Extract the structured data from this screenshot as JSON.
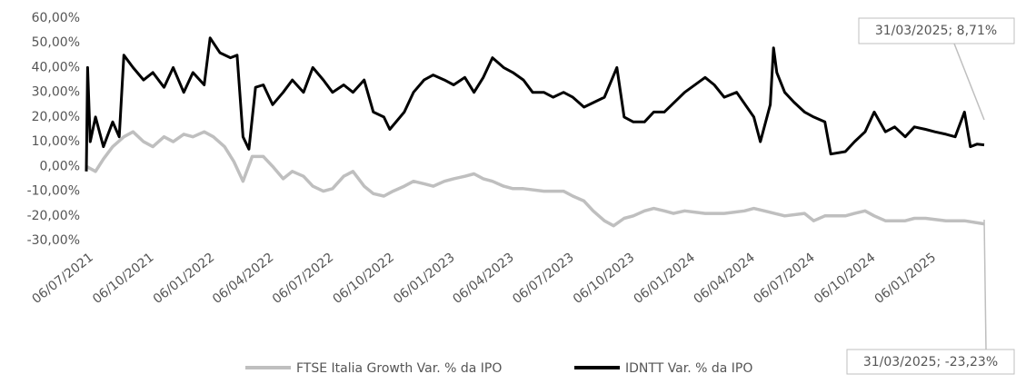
{
  "chart_data": {
    "type": "line",
    "xlim": [
      "06/07/2021",
      "31/03/2025"
    ],
    "xticks": [
      "06/07/2021",
      "06/10/2021",
      "06/01/2022",
      "06/04/2022",
      "06/07/2022",
      "06/10/2022",
      "06/01/2023",
      "06/04/2023",
      "06/07/2023",
      "06/10/2023",
      "06/01/2024",
      "06/04/2024",
      "06/07/2024",
      "06/10/2024",
      "06/01/2025"
    ],
    "ylim": [
      -30,
      60
    ],
    "yticks": [
      {
        "value": 60,
        "label": "60,00%"
      },
      {
        "value": 50,
        "label": "50,00%"
      },
      {
        "value": 40,
        "label": "40,00%"
      },
      {
        "value": 30,
        "label": "30,00%"
      },
      {
        "value": 20,
        "label": "20,00%"
      },
      {
        "value": 10,
        "label": "10,00%"
      },
      {
        "value": 0,
        "label": "0,00%"
      },
      {
        "value": -10,
        "label": "-10,00%"
      },
      {
        "value": -20,
        "label": "-20,00%"
      },
      {
        "value": -30,
        "label": "-30,00%"
      }
    ],
    "grid": false,
    "series": [
      {
        "name": "FTSE Italia Growth Var. % da IPO",
        "color": "#bfbfbf",
        "x": [
          "06/07/2021",
          "20/07/2021",
          "01/08/2021",
          "15/08/2021",
          "01/09/2021",
          "15/09/2021",
          "01/10/2021",
          "15/10/2021",
          "01/11/2021",
          "15/11/2021",
          "01/12/2021",
          "15/12/2021",
          "01/01/2022",
          "15/01/2022",
          "01/02/2022",
          "15/02/2022",
          "01/03/2022",
          "15/03/2022",
          "01/04/2022",
          "15/04/2022",
          "01/05/2022",
          "15/05/2022",
          "01/06/2022",
          "15/06/2022",
          "01/07/2022",
          "15/07/2022",
          "01/08/2022",
          "15/08/2022",
          "01/09/2022",
          "15/09/2022",
          "01/10/2022",
          "15/10/2022",
          "01/11/2022",
          "15/11/2022",
          "01/12/2022",
          "15/12/2022",
          "01/01/2023",
          "15/01/2023",
          "01/02/2023",
          "15/02/2023",
          "01/03/2023",
          "15/03/2023",
          "01/04/2023",
          "15/04/2023",
          "01/05/2023",
          "01/06/2023",
          "01/07/2023",
          "15/07/2023",
          "01/08/2023",
          "15/08/2023",
          "01/09/2023",
          "15/09/2023",
          "01/10/2023",
          "15/10/2023",
          "01/11/2023",
          "15/11/2023",
          "01/12/2023",
          "15/12/2023",
          "01/01/2024",
          "01/02/2024",
          "01/03/2024",
          "01/04/2024",
          "15/04/2024",
          "01/05/2024",
          "01/06/2024",
          "01/07/2024",
          "15/07/2024",
          "01/08/2024",
          "01/09/2024",
          "15/09/2024",
          "01/10/2024",
          "15/10/2024",
          "01/11/2024",
          "01/12/2024",
          "15/12/2024",
          "01/01/2025",
          "01/02/2025",
          "01/03/2025",
          "31/03/2025"
        ],
        "values": [
          0,
          -2,
          3,
          8,
          12,
          14,
          10,
          8,
          12,
          10,
          13,
          12,
          14,
          12,
          8,
          2,
          -6,
          4,
          4,
          0,
          -5,
          -2,
          -4,
          -8,
          -10,
          -9,
          -4,
          -2,
          -8,
          -11,
          -12,
          -10,
          -8,
          -6,
          -7,
          -8,
          -6,
          -5,
          -4,
          -3,
          -5,
          -6,
          -8,
          -9,
          -9,
          -10,
          -10,
          -12,
          -14,
          -18,
          -22,
          -24,
          -21,
          -20,
          -18,
          -17,
          -18,
          -19,
          -18,
          -19,
          -19,
          -18,
          -17,
          -18,
          -20,
          -19,
          -22,
          -20,
          -20,
          -19,
          -18,
          -20,
          -22,
          -22,
          -21,
          -21,
          -22,
          -22,
          -23.23
        ]
      },
      {
        "name": "IDNTT Var. % da IPO",
        "color": "#000000",
        "x": [
          "06/07/2021",
          "08/07/2021",
          "12/07/2021",
          "20/07/2021",
          "01/08/2021",
          "15/08/2021",
          "25/08/2021",
          "01/09/2021",
          "15/09/2021",
          "01/10/2021",
          "15/10/2021",
          "01/11/2021",
          "15/11/2021",
          "01/12/2021",
          "15/12/2021",
          "01/01/2022",
          "10/01/2022",
          "25/01/2022",
          "10/02/2022",
          "20/02/2022",
          "01/03/2022",
          "10/03/2022",
          "20/03/2022",
          "01/04/2022",
          "15/04/2022",
          "01/05/2022",
          "15/05/2022",
          "01/06/2022",
          "15/06/2022",
          "01/07/2022",
          "15/07/2022",
          "01/08/2022",
          "15/08/2022",
          "01/09/2022",
          "15/09/2022",
          "01/10/2022",
          "10/10/2022",
          "01/11/2022",
          "15/11/2022",
          "01/12/2022",
          "15/12/2022",
          "01/01/2023",
          "15/01/2023",
          "01/02/2023",
          "15/02/2023",
          "01/03/2023",
          "15/03/2023",
          "01/04/2023",
          "15/04/2023",
          "01/05/2023",
          "15/05/2023",
          "01/06/2023",
          "15/06/2023",
          "01/07/2023",
          "15/07/2023",
          "01/08/2023",
          "01/09/2023",
          "20/09/2023",
          "01/10/2023",
          "15/10/2023",
          "01/11/2023",
          "15/11/2023",
          "01/12/2023",
          "01/01/2024",
          "01/02/2024",
          "15/02/2024",
          "01/03/2024",
          "20/03/2024",
          "15/04/2024",
          "25/04/2024",
          "10/05/2024",
          "15/05/2024",
          "20/05/2024",
          "01/06/2024",
          "15/06/2024",
          "01/07/2024",
          "15/07/2024",
          "01/08/2024",
          "10/08/2024",
          "01/09/2024",
          "15/09/2024",
          "01/10/2024",
          "15/10/2024",
          "01/11/2024",
          "15/11/2024",
          "01/12/2024",
          "15/12/2024",
          "01/01/2025",
          "15/01/2025",
          "01/02/2025",
          "15/02/2025",
          "01/03/2025",
          "10/03/2025",
          "20/03/2025",
          "31/03/2025"
        ],
        "values": [
          -2,
          40,
          10,
          20,
          8,
          18,
          12,
          45,
          40,
          35,
          38,
          32,
          40,
          30,
          38,
          33,
          52,
          46,
          44,
          45,
          12,
          7,
          32,
          33,
          25,
          30,
          35,
          30,
          40,
          35,
          30,
          33,
          30,
          35,
          22,
          20,
          15,
          22,
          30,
          35,
          37,
          35,
          33,
          36,
          30,
          36,
          44,
          40,
          38,
          35,
          30,
          30,
          28,
          30,
          28,
          24,
          28,
          40,
          20,
          18,
          18,
          22,
          22,
          30,
          36,
          33,
          28,
          30,
          20,
          10,
          25,
          48,
          38,
          30,
          26,
          22,
          20,
          18,
          5,
          6,
          10,
          14,
          22,
          14,
          16,
          12,
          16,
          15,
          14,
          13,
          12,
          22,
          8,
          9,
          8.71
        ]
      }
    ],
    "annotations": [
      "31/03/2025; 8,71%",
      "31/03/2025; -23,23%"
    ]
  }
}
